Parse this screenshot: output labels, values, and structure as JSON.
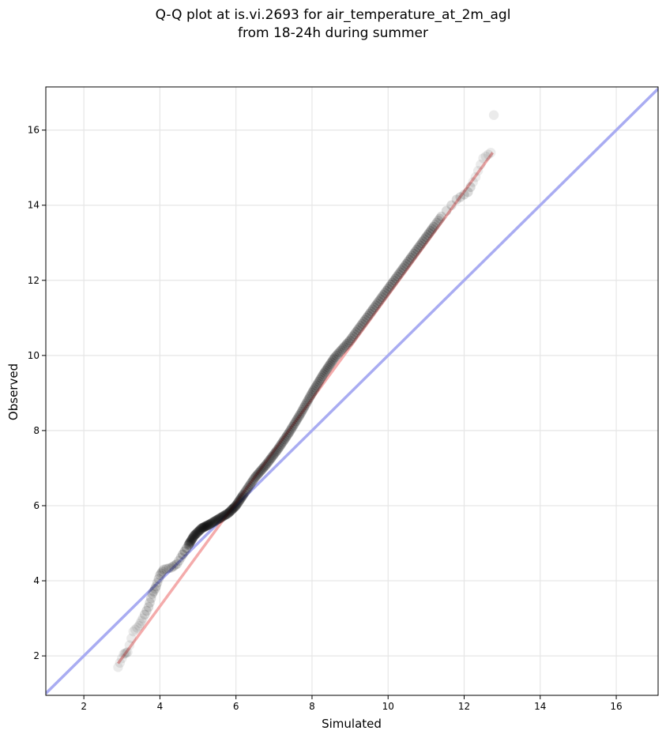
{
  "chart_data": {
    "type": "scatter",
    "title_line1": "Q-Q plot at is.vi.2693 for air_temperature_at_2m_agl",
    "title_line2": "from 18-24h during summer",
    "xlabel": "Simulated",
    "ylabel": "Observed",
    "xlim": [
      1.0,
      17.1
    ],
    "ylim": [
      0.95,
      17.15
    ],
    "xticks": [
      2,
      4,
      6,
      8,
      10,
      12,
      14,
      16
    ],
    "yticks": [
      2,
      4,
      6,
      8,
      10,
      12,
      14,
      16
    ],
    "grid": true,
    "colors": {
      "points": "#000000",
      "identity_line": "#a9acf2",
      "fit_line": "#f4a7a7"
    },
    "identity_line": {
      "x": [
        1.0,
        17.1
      ],
      "y": [
        1.0,
        17.1
      ]
    },
    "fit_line": {
      "x": [
        2.9,
        12.75
      ],
      "y": [
        1.8,
        15.4
      ]
    },
    "qq_points": {
      "x": [
        2.9,
        3.05,
        3.15,
        3.3,
        3.45,
        3.55,
        3.7,
        3.8,
        3.9,
        4.0,
        4.1,
        4.3,
        4.45,
        4.6,
        4.75,
        4.9,
        5.1,
        5.3,
        5.55,
        5.8,
        6.0,
        6.2,
        6.5,
        6.8,
        7.1,
        7.4,
        7.7,
        8.0,
        8.3,
        8.6,
        9.0,
        9.4,
        9.8,
        10.2,
        10.6,
        11.0,
        11.4,
        11.8,
        12.1,
        12.3,
        12.5,
        12.7,
        12.78
      ],
      "y": [
        1.7,
        2.05,
        2.1,
        2.65,
        2.8,
        3.0,
        3.3,
        3.65,
        3.85,
        4.15,
        4.3,
        4.35,
        4.45,
        4.7,
        4.95,
        5.2,
        5.4,
        5.5,
        5.65,
        5.8,
        6.0,
        6.3,
        6.75,
        7.1,
        7.5,
        7.95,
        8.45,
        9.0,
        9.5,
        9.95,
        10.4,
        10.95,
        11.5,
        12.05,
        12.6,
        13.15,
        13.7,
        14.15,
        14.35,
        14.75,
        15.25,
        15.4,
        16.4
      ]
    }
  }
}
